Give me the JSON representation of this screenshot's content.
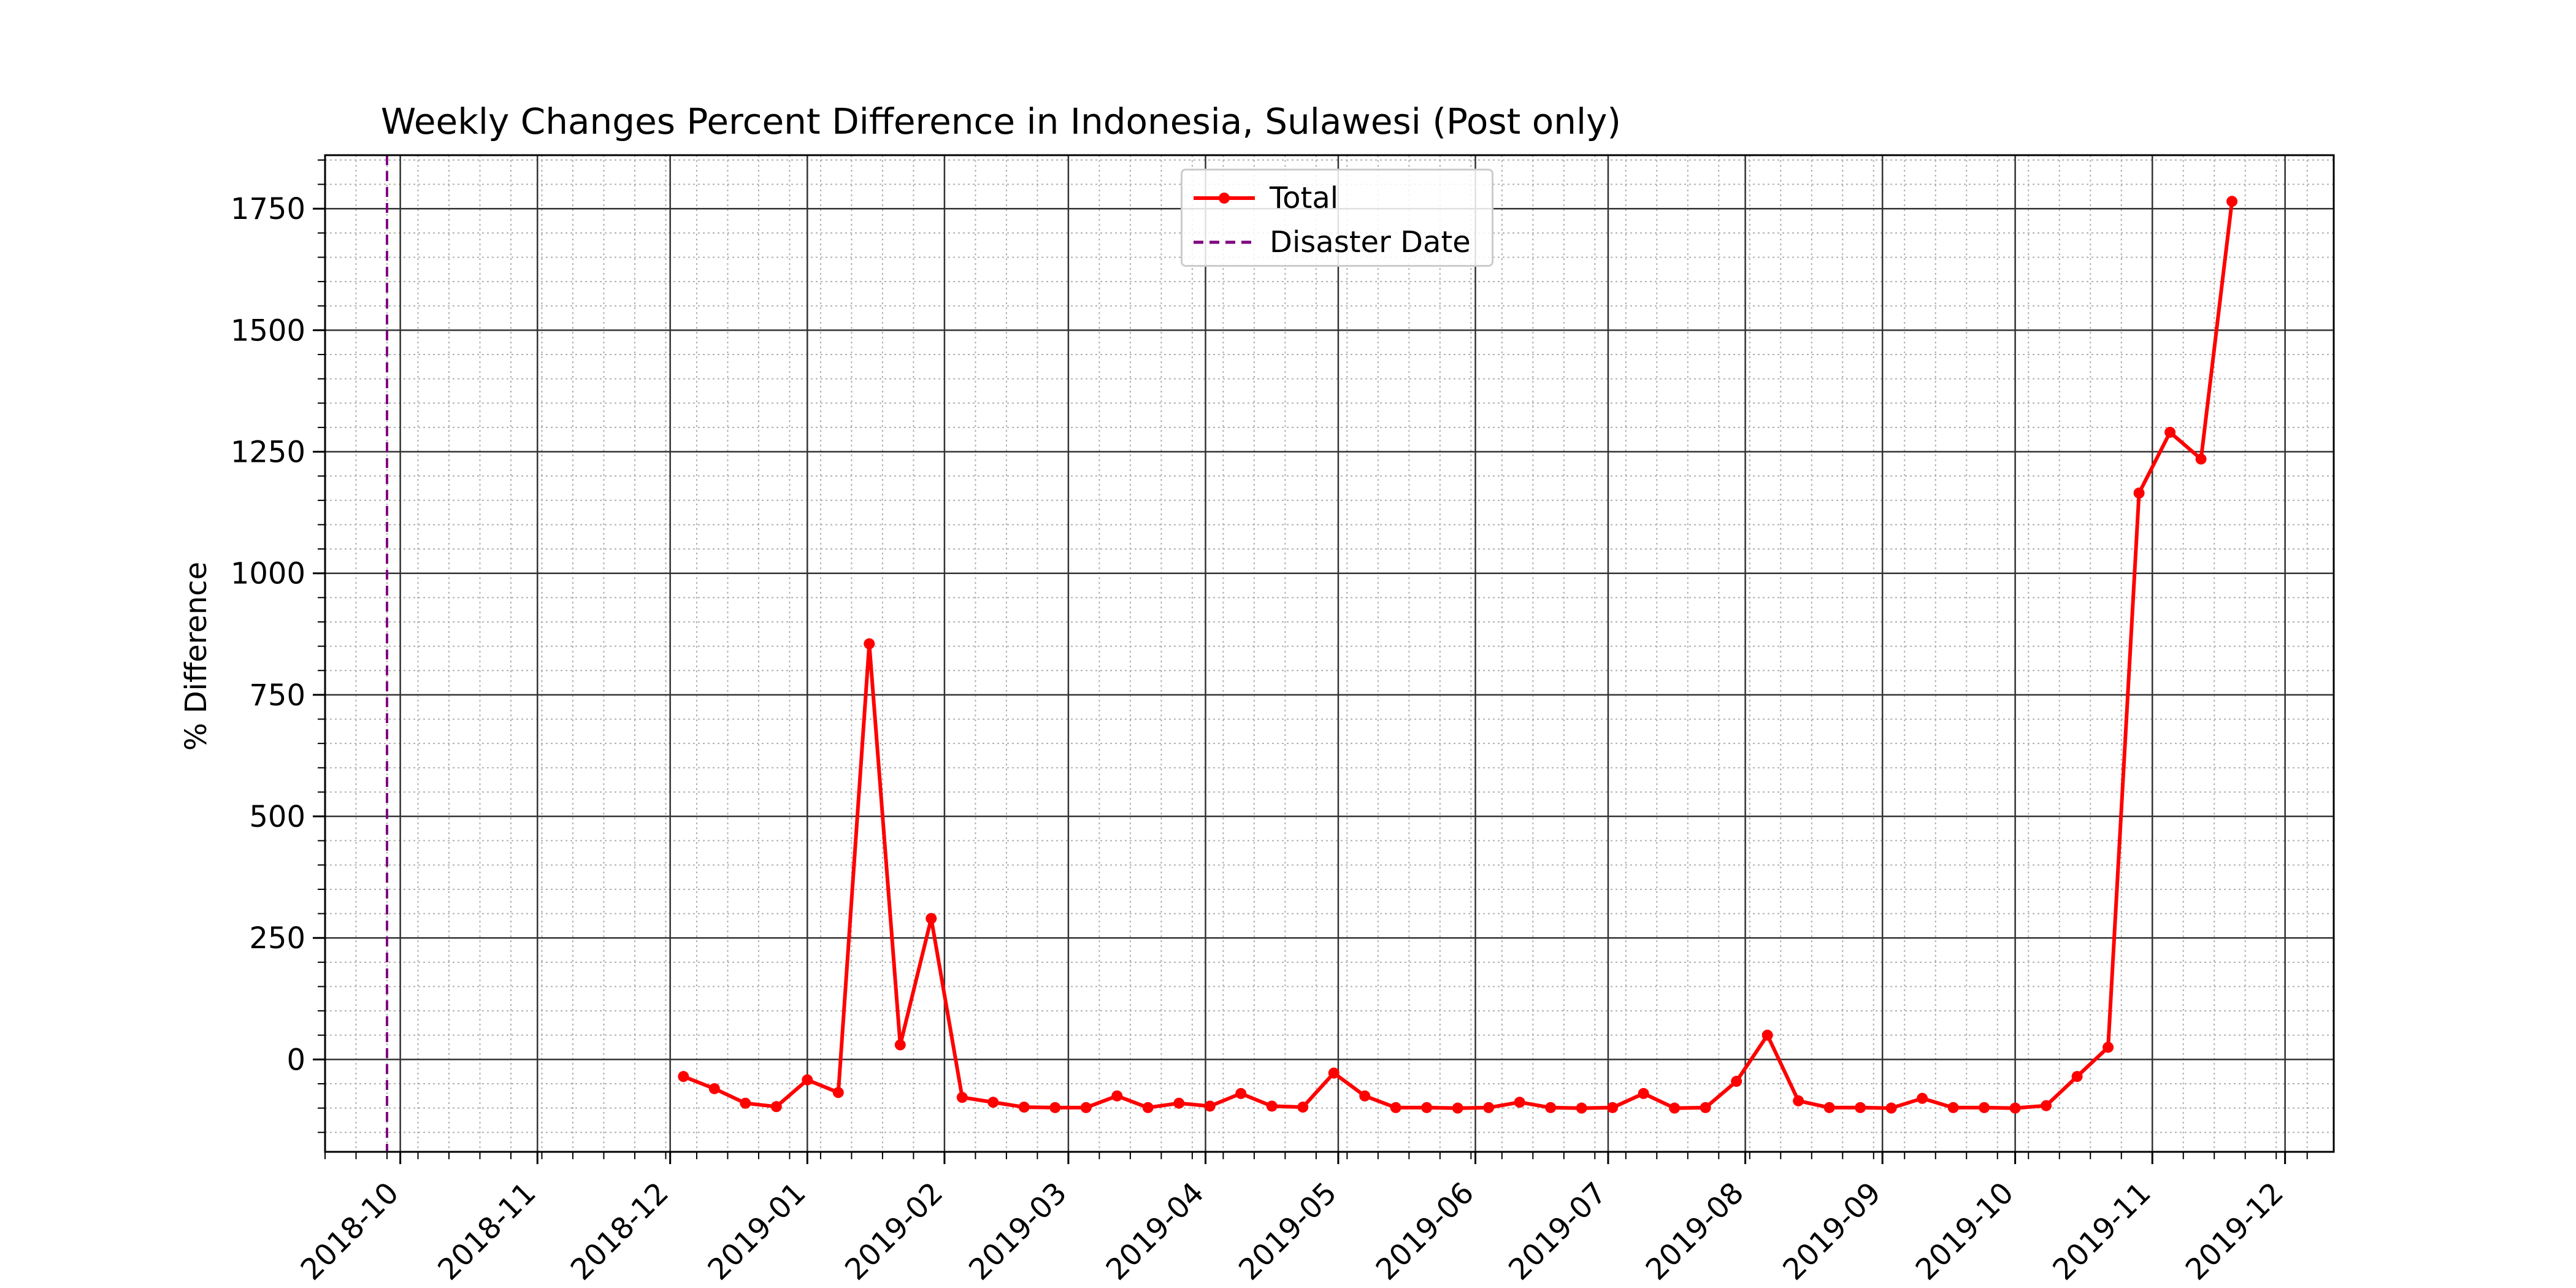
{
  "chart_data": {
    "type": "line",
    "title": "Weekly Changes Percent Difference in Indonesia, Sulawesi (Post only)",
    "xlabel": "",
    "ylabel": "% Difference",
    "x_tick_labels": [
      "2018-10",
      "2018-11",
      "2018-12",
      "2019-01",
      "2019-02",
      "2019-03",
      "2019-04",
      "2019-05",
      "2019-06",
      "2019-07",
      "2019-08",
      "2019-09",
      "2019-10",
      "2019-11",
      "2019-12"
    ],
    "y_tick_labels": [
      "0",
      "250",
      "500",
      "750",
      "1000",
      "1250",
      "1500",
      "1750"
    ],
    "xlim": [
      "2018-09-14",
      "2019-12-12"
    ],
    "ylim": [
      -190,
      1860
    ],
    "grid": "major solid, minor dotted",
    "legend_position": "top-center",
    "series": [
      {
        "name": "Total",
        "color": "#ff0000",
        "marker": "circle",
        "x": [
          "2018-12-04",
          "2018-12-11",
          "2018-12-18",
          "2018-12-25",
          "2019-01-01",
          "2019-01-08",
          "2019-01-15",
          "2019-01-22",
          "2019-01-29",
          "2019-02-05",
          "2019-02-12",
          "2019-02-19",
          "2019-02-26",
          "2019-03-05",
          "2019-03-12",
          "2019-03-19",
          "2019-03-26",
          "2019-04-02",
          "2019-04-09",
          "2019-04-16",
          "2019-04-23",
          "2019-04-30",
          "2019-05-07",
          "2019-05-14",
          "2019-05-21",
          "2019-05-28",
          "2019-06-04",
          "2019-06-11",
          "2019-06-18",
          "2019-06-25",
          "2019-07-02",
          "2019-07-09",
          "2019-07-16",
          "2019-07-23",
          "2019-07-30",
          "2019-08-06",
          "2019-08-13",
          "2019-08-20",
          "2019-08-27",
          "2019-09-03",
          "2019-09-10",
          "2019-09-17",
          "2019-09-24",
          "2019-10-01",
          "2019-10-08",
          "2019-10-15",
          "2019-10-22",
          "2019-10-29",
          "2019-11-05",
          "2019-11-12",
          "2019-11-19"
        ],
        "y": [
          -35,
          -60,
          -90,
          -97,
          -42,
          -68,
          855,
          30,
          290,
          -78,
          -88,
          -98,
          -99,
          -99,
          -75,
          -99,
          -90,
          -96,
          -70,
          -96,
          -98,
          -28,
          -75,
          -99,
          -99,
          -100,
          -99,
          -88,
          -99,
          -100,
          -99,
          -70,
          -100,
          -99,
          -45,
          50,
          -85,
          -99,
          -99,
          -100,
          -80,
          -99,
          -99,
          -100,
          -95,
          -35,
          25,
          1165,
          1290,
          1235,
          1765
        ]
      }
    ],
    "vertical_line": {
      "name": "Disaster Date",
      "x": "2018-09-28",
      "color": "#800080",
      "style": "dashed"
    }
  },
  "legend": {
    "total_label": "Total",
    "disaster_label": "Disaster Date"
  }
}
